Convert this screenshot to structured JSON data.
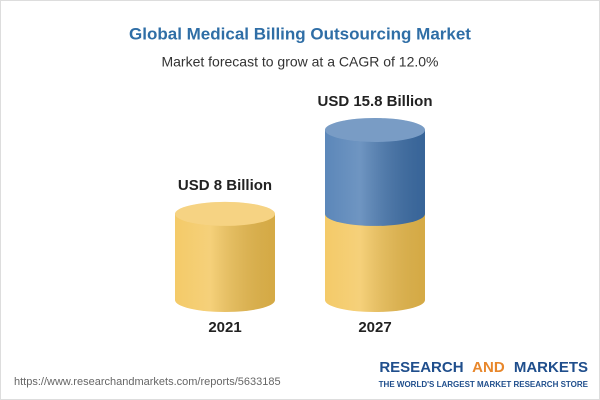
{
  "chart_data": {
    "type": "cylinder",
    "title": "Global Medical Billing Outsourcing Market",
    "subtitle": "Market forecast to grow at a CAGR of 12.0%",
    "categories": [
      "2021",
      "2027"
    ],
    "values": [
      8,
      15.8
    ],
    "value_labels": [
      "USD 8 Billion",
      "USD 15.8 Billion"
    ],
    "color": "#f2c14e",
    "increase_color": "#3f72ad"
  },
  "footer": {
    "url": "https://www.researchandmarkets.com/reports/5633185",
    "brand": [
      "RESEARCH",
      "AND",
      "MARKETS"
    ],
    "tagline": "THE WORLD'S LARGEST MARKET RESEARCH STORE"
  }
}
